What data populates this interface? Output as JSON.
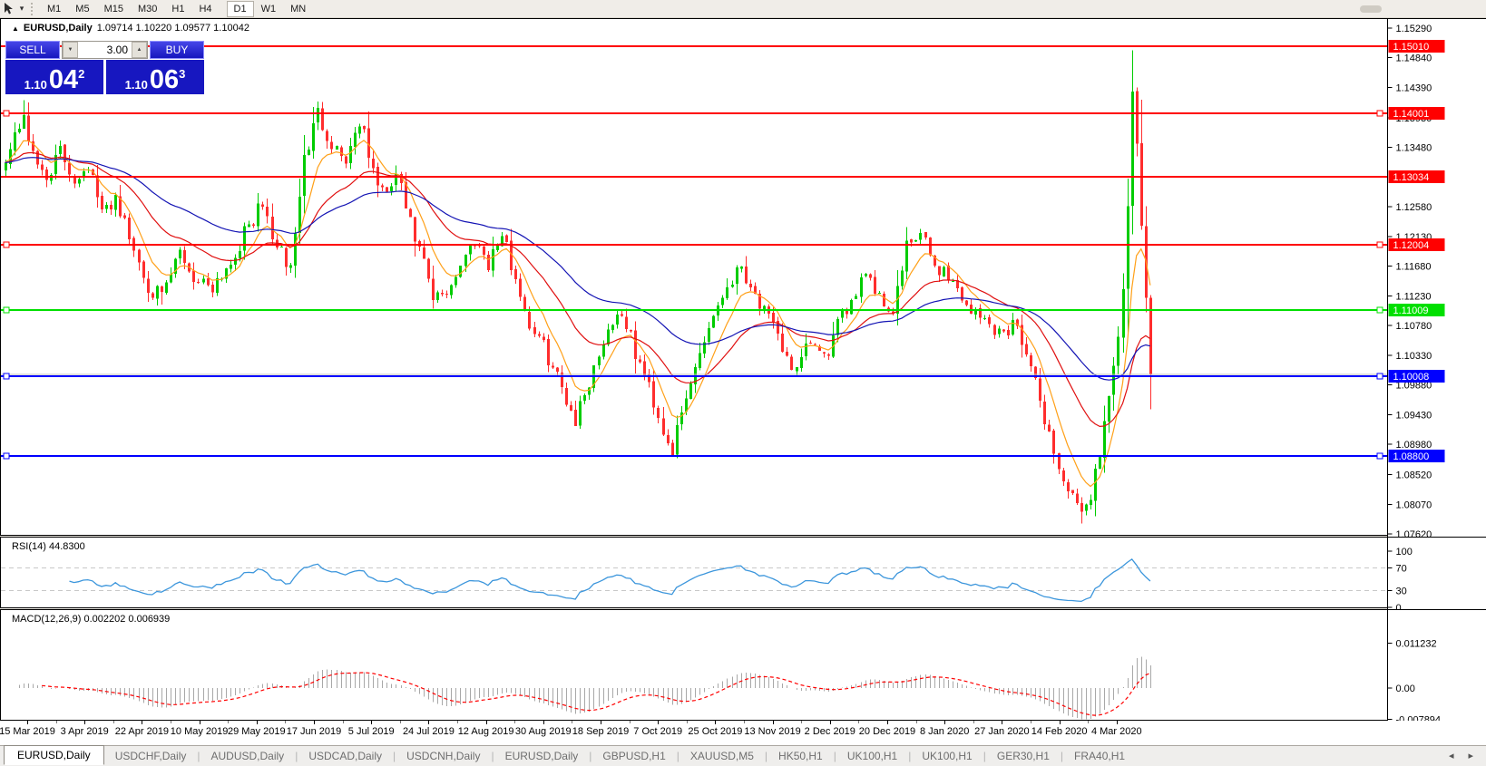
{
  "toolbar": {
    "timeframes": [
      {
        "label": "M1",
        "active": false
      },
      {
        "label": "M5",
        "active": false
      },
      {
        "label": "M15",
        "active": false
      },
      {
        "label": "M30",
        "active": false
      },
      {
        "label": "H1",
        "active": false
      },
      {
        "label": "H4",
        "active": false
      },
      {
        "label": "D1",
        "active": true
      },
      {
        "label": "W1",
        "active": false
      },
      {
        "label": "MN",
        "active": false
      }
    ],
    "tool_caret": "▾"
  },
  "window": {
    "collapse_arrow": "▲",
    "symbol_title": "EURUSD,Daily",
    "ohlc_text": "1.09714 1.10220 1.09577 1.10042"
  },
  "trade_panel": {
    "sell_label": "SELL",
    "buy_label": "BUY",
    "volume": "3.00",
    "volume_down_glyph": "▼",
    "volume_up_glyph": "▲",
    "sell_price_big": "1.10",
    "sell_price_main": "04",
    "sell_price_sup": "2",
    "buy_price_big": "1.10",
    "buy_price_main": "06",
    "buy_price_sup": "3"
  },
  "rsi": {
    "label": "RSI(14) 44.8300"
  },
  "macd": {
    "label": "MACD(12,26,9) 0.002202 0.006939"
  },
  "tab_scroll": {
    "left": "◂",
    "right": "▸"
  },
  "tabs": [
    {
      "label": "EURUSD,Daily",
      "active": true
    },
    {
      "label": "USDCHF,Daily",
      "active": false
    },
    {
      "label": "AUDUSD,Daily",
      "active": false
    },
    {
      "label": "USDCAD,Daily",
      "active": false
    },
    {
      "label": "USDCNH,Daily",
      "active": false
    },
    {
      "label": "EURUSD,Daily",
      "active": false
    },
    {
      "label": "GBPUSD,H1",
      "active": false
    },
    {
      "label": "XAUUSD,M5",
      "active": false
    },
    {
      "label": "HK50,H1",
      "active": false
    },
    {
      "label": "UK100,H1",
      "active": false
    },
    {
      "label": "UK100,H1",
      "active": false
    },
    {
      "label": "GER30,H1",
      "active": false
    },
    {
      "label": "FRA40,H1",
      "active": false
    }
  ],
  "chart_data": {
    "type": "candlestick",
    "symbol": "EURUSD",
    "timeframe": "Daily",
    "ohlc_display": {
      "open": 1.09714,
      "high": 1.1022,
      "low": 1.09577,
      "close": 1.10042
    },
    "n_candles": 250,
    "price_axis_ticks": [
      "1.15290",
      "1.14840",
      "1.14390",
      "1.13930",
      "1.13480",
      "1.12580",
      "1.12130",
      "1.11680",
      "1.11230",
      "1.10780",
      "1.10330",
      "1.09880",
      "1.09430",
      "1.08980",
      "1.08520",
      "1.08070",
      "1.07620"
    ],
    "x_dates": [
      "15 Mar 2019",
      "3 Apr 2019",
      "22 Apr 2019",
      "10 May 2019",
      "29 May 2019",
      "17 Jun 2019",
      "5 Jul 2019",
      "24 Jul 2019",
      "12 Aug 2019",
      "30 Aug 2019",
      "18 Sep 2019",
      "7 Oct 2019",
      "25 Oct 2019",
      "13 Nov 2019",
      "2 Dec 2019",
      "20 Dec 2019",
      "8 Jan 2020",
      "27 Jan 2020",
      "14 Feb 2020",
      "4 Mar 2020"
    ],
    "price_path": [
      [
        0,
        1.1325
      ],
      [
        2,
        1.1365
      ],
      [
        4,
        1.14
      ],
      [
        6,
        1.133
      ],
      [
        9,
        1.1305
      ],
      [
        12,
        1.134
      ],
      [
        15,
        1.13
      ],
      [
        18,
        1.1325
      ],
      [
        21,
        1.1245
      ],
      [
        24,
        1.1275
      ],
      [
        27,
        1.121
      ],
      [
        31,
        1.114
      ],
      [
        34,
        1.1118
      ],
      [
        38,
        1.119
      ],
      [
        41,
        1.115
      ],
      [
        45,
        1.114
      ],
      [
        49,
        1.1175
      ],
      [
        53,
        1.123
      ],
      [
        56,
        1.126
      ],
      [
        59,
        1.1195
      ],
      [
        62,
        1.1165
      ],
      [
        65,
        1.133
      ],
      [
        68,
        1.14
      ],
      [
        71,
        1.1355
      ],
      [
        74,
        1.133
      ],
      [
        77,
        1.139
      ],
      [
        80,
        1.131
      ],
      [
        83,
        1.127
      ],
      [
        85,
        1.131
      ],
      [
        88,
        1.123
      ],
      [
        91,
        1.117
      ],
      [
        93,
        1.1115
      ],
      [
        96,
        1.113
      ],
      [
        99,
        1.117
      ],
      [
        102,
        1.121
      ],
      [
        105,
        1.1175
      ],
      [
        108,
        1.1215
      ],
      [
        111,
        1.115
      ],
      [
        114,
        1.108
      ],
      [
        117,
        1.1045
      ],
      [
        120,
        1.1
      ],
      [
        124,
        1.0935
      ],
      [
        127,
        1.0995
      ],
      [
        131,
        1.1075
      ],
      [
        134,
        1.11
      ],
      [
        137,
        1.1035
      ],
      [
        140,
        1.0985
      ],
      [
        143,
        1.092
      ],
      [
        145,
        1.089
      ],
      [
        148,
        1.0965
      ],
      [
        151,
        1.104
      ],
      [
        154,
        1.1095
      ],
      [
        157,
        1.114
      ],
      [
        160,
        1.117
      ],
      [
        163,
        1.1125
      ],
      [
        166,
        1.1085
      ],
      [
        169,
        1.1045
      ],
      [
        172,
        1.1005
      ],
      [
        175,
        1.1055
      ],
      [
        178,
        1.1025
      ],
      [
        181,
        1.1075
      ],
      [
        184,
        1.112
      ],
      [
        187,
        1.1165
      ],
      [
        190,
        1.112
      ],
      [
        193,
        1.11
      ],
      [
        196,
        1.1195
      ],
      [
        199,
        1.1215
      ],
      [
        202,
        1.117
      ],
      [
        205,
        1.1155
      ],
      [
        208,
        1.112
      ],
      [
        211,
        1.1095
      ],
      [
        214,
        1.108
      ],
      [
        217,
        1.1065
      ],
      [
        220,
        1.1085
      ],
      [
        223,
        1.101
      ],
      [
        226,
        1.094
      ],
      [
        229,
        1.086
      ],
      [
        232,
        1.0815
      ],
      [
        234,
        1.0785
      ],
      [
        236,
        1.0825
      ],
      [
        238,
        1.0885
      ],
      [
        240,
        1.0975
      ],
      [
        242,
        1.106
      ],
      [
        243,
        1.113
      ],
      [
        244,
        1.126
      ],
      [
        245,
        1.143
      ],
      [
        246,
        1.135
      ],
      [
        247,
        1.123
      ],
      [
        248,
        1.112
      ],
      [
        249,
        1.10042
      ]
    ],
    "wick_overrides": {
      "4": {
        "high": 1.142
      },
      "34": {
        "low": 1.111
      },
      "124": {
        "low": 1.0926
      },
      "145": {
        "low": 1.0879
      },
      "234": {
        "low": 1.0778
      },
      "245": {
        "high": 1.1495
      }
    },
    "moving_averages": [
      {
        "name": "fast",
        "period": 8,
        "color": "#FFA018"
      },
      {
        "name": "medium",
        "period": 25,
        "color": "#E01010"
      },
      {
        "name": "slow",
        "period": 55,
        "color": "#1414B4"
      }
    ],
    "hlines": [
      {
        "price": 1.1501,
        "label": "1.15010",
        "color": "#FF0000",
        "markers": false
      },
      {
        "price": 1.14001,
        "label": "1.14001",
        "color": "#FF0000",
        "markers": true
      },
      {
        "price": 1.13034,
        "label": "1.13034",
        "color": "#FF0000",
        "markers": false
      },
      {
        "price": 1.12004,
        "label": "1.12004",
        "color": "#FF0000",
        "markers": true
      },
      {
        "price": 1.11009,
        "label": "1.11009",
        "color": "#00DF00",
        "markers": true
      },
      {
        "price": 1.10008,
        "label": "1.10008",
        "color": "#0000FF",
        "markers": true
      },
      {
        "price": 1.088,
        "label": "1.08800",
        "color": "#0000FF",
        "markers": true
      }
    ],
    "bid_line": {
      "price": 1.10042,
      "color": "#BEBEBE"
    },
    "candle_colors": {
      "up": "#00CC00",
      "down": "#FF2D2D"
    },
    "rsi": {
      "period": 14,
      "value": 44.83,
      "levels": [
        70,
        30
      ],
      "axis_labels": [
        {
          "label": "100",
          "v": 100
        },
        {
          "label": "70",
          "v": 70
        },
        {
          "label": "30",
          "v": 30
        },
        {
          "label": "0",
          "v": 0
        }
      ],
      "color": "#3C96DC"
    },
    "macd": {
      "fast": 12,
      "slow": 26,
      "signal_period": 9,
      "values": [
        0.002202,
        0.006939
      ],
      "axis_labels": [
        {
          "label": "0.011232",
          "v": 0.011232
        },
        {
          "label": "0.00",
          "v": 0
        },
        {
          "label": "-0.007894",
          "v": -0.007894
        }
      ],
      "hist_color": "#A8A8A8",
      "signal_color": "#FF0000"
    }
  }
}
